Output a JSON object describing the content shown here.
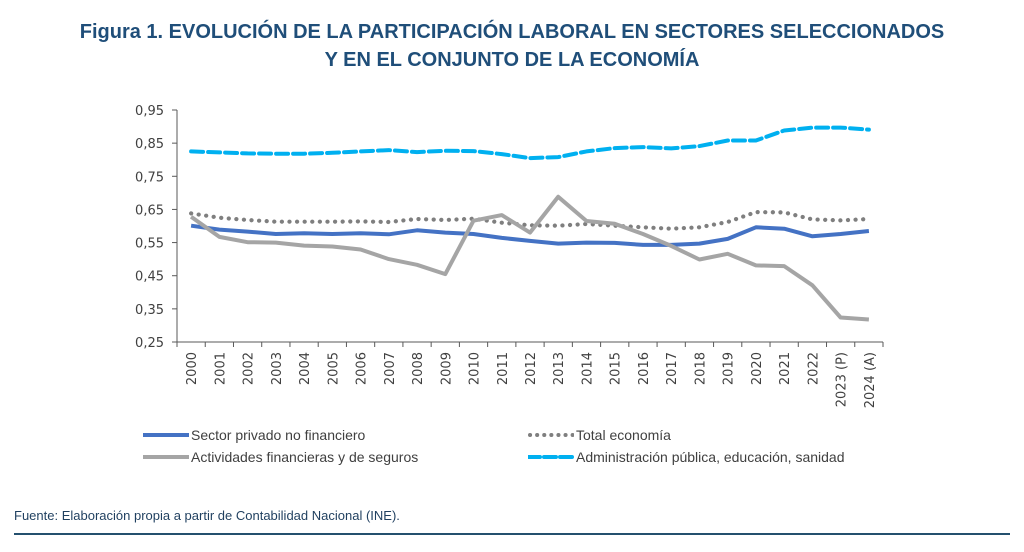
{
  "title": {
    "line1": "Figura 1. EVOLUCIÓN DE LA PARTICIPACIÓN LABORAL EN SECTORES SELECCIONADOS",
    "line2": "Y EN EL CONJUNTO DE LA ECONOMÍA"
  },
  "source": "Fuente: Elaboración propia a partir de Contabilidad Nacional (INE).",
  "chart_data": {
    "type": "line",
    "title": "Figura 1. EVOLUCIÓN DE LA PARTICIPACIÓN LABORAL EN SECTORES SELECCIONADOS Y EN EL CONJUNTO DE LA ECONOMÍA",
    "xlabel": "",
    "ylabel": "",
    "ylim": [
      0.25,
      0.95
    ],
    "yticks": [
      "0,25",
      "0,35",
      "0,45",
      "0,55",
      "0,65",
      "0,75",
      "0,85",
      "0,95"
    ],
    "ytick_values": [
      0.25,
      0.35,
      0.45,
      0.55,
      0.65,
      0.75,
      0.85,
      0.95
    ],
    "grid": false,
    "legend_position": "bottom",
    "categories": [
      "2000",
      "2001",
      "2002",
      "2003",
      "2004",
      "2005",
      "2006",
      "2007",
      "2008",
      "2009",
      "2010",
      "2011",
      "2012",
      "2013",
      "2014",
      "2015",
      "2016",
      "2017",
      "2018",
      "2019",
      "2020",
      "2021",
      "2022",
      "2023 (P)",
      "2024 (A)"
    ],
    "series": [
      {
        "name": "Sector privado no financiero",
        "color": "#4472c4",
        "style": "solid",
        "values": [
          0.601,
          0.589,
          0.583,
          0.576,
          0.578,
          0.576,
          0.578,
          0.575,
          0.587,
          0.58,
          0.576,
          0.564,
          0.555,
          0.547,
          0.55,
          0.549,
          0.543,
          0.543,
          0.547,
          0.561,
          0.596,
          0.592,
          0.569,
          0.576,
          0.585
        ]
      },
      {
        "name": "Total economía",
        "color": "#7f7f7f",
        "style": "dotted",
        "values": [
          0.638,
          0.625,
          0.618,
          0.613,
          0.613,
          0.613,
          0.614,
          0.612,
          0.621,
          0.618,
          0.622,
          0.61,
          0.602,
          0.601,
          0.606,
          0.601,
          0.596,
          0.592,
          0.596,
          0.612,
          0.642,
          0.641,
          0.62,
          0.617,
          0.621
        ]
      },
      {
        "name": "Actividades financieras y de seguros",
        "color": "#a5a5a5",
        "style": "solid",
        "values": [
          0.628,
          0.567,
          0.551,
          0.55,
          0.541,
          0.538,
          0.529,
          0.5,
          0.483,
          0.455,
          0.616,
          0.633,
          0.58,
          0.688,
          0.615,
          0.607,
          0.576,
          0.54,
          0.499,
          0.516,
          0.481,
          0.479,
          0.421,
          0.324,
          0.318
        ]
      },
      {
        "name": "Administración pública, educación, sanidad",
        "color": "#00b0f0",
        "style": "dashed",
        "values": [
          0.825,
          0.822,
          0.819,
          0.818,
          0.818,
          0.821,
          0.825,
          0.829,
          0.823,
          0.827,
          0.826,
          0.817,
          0.805,
          0.808,
          0.825,
          0.835,
          0.838,
          0.834,
          0.841,
          0.858,
          0.858,
          0.888,
          0.897,
          0.897,
          0.891
        ]
      }
    ]
  },
  "legend": [
    {
      "label": "Sector privado no financiero",
      "color": "#4472c4",
      "style": "solid"
    },
    {
      "label": "Total economía",
      "color": "#7f7f7f",
      "style": "dotted"
    },
    {
      "label": "Actividades financieras y de seguros",
      "color": "#a5a5a5",
      "style": "solid"
    },
    {
      "label": "Administración pública, educación, sanidad",
      "color": "#00b0f0",
      "style": "dashed"
    }
  ]
}
